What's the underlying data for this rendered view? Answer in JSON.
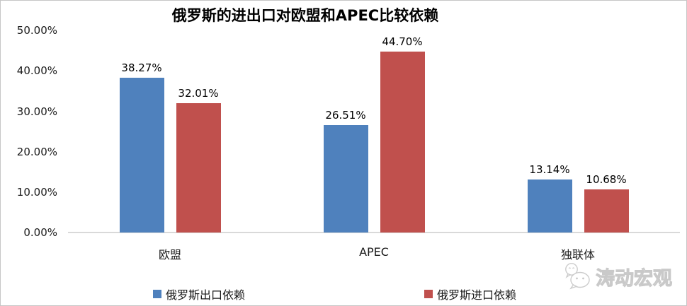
{
  "chart_data": {
    "type": "bar",
    "title": "俄罗斯的进出口对欧盟和APEC比较依赖",
    "categories": [
      "欧盟",
      "APEC",
      "独联体"
    ],
    "series": [
      {
        "name": "俄罗斯出口依赖",
        "color": "#4F81BD",
        "values": [
          38.27,
          26.51,
          13.14
        ]
      },
      {
        "name": "俄罗斯进口依赖",
        "color": "#C0504D",
        "values": [
          32.01,
          44.7,
          10.68
        ]
      }
    ],
    "data_labels": [
      [
        "38.27%",
        "26.51%",
        "13.14%"
      ],
      [
        "32.01%",
        "44.70%",
        "10.68%"
      ]
    ],
    "yticks": [
      "0.00%",
      "10.00%",
      "20.00%",
      "30.00%",
      "40.00%",
      "50.00%"
    ],
    "ylim": [
      0,
      50
    ],
    "grid": false,
    "legend_position": "bottom",
    "axis_line_color": "#D9D9D9"
  },
  "watermark": {
    "text": "涛动宏观",
    "icon": "wechat-logo"
  }
}
